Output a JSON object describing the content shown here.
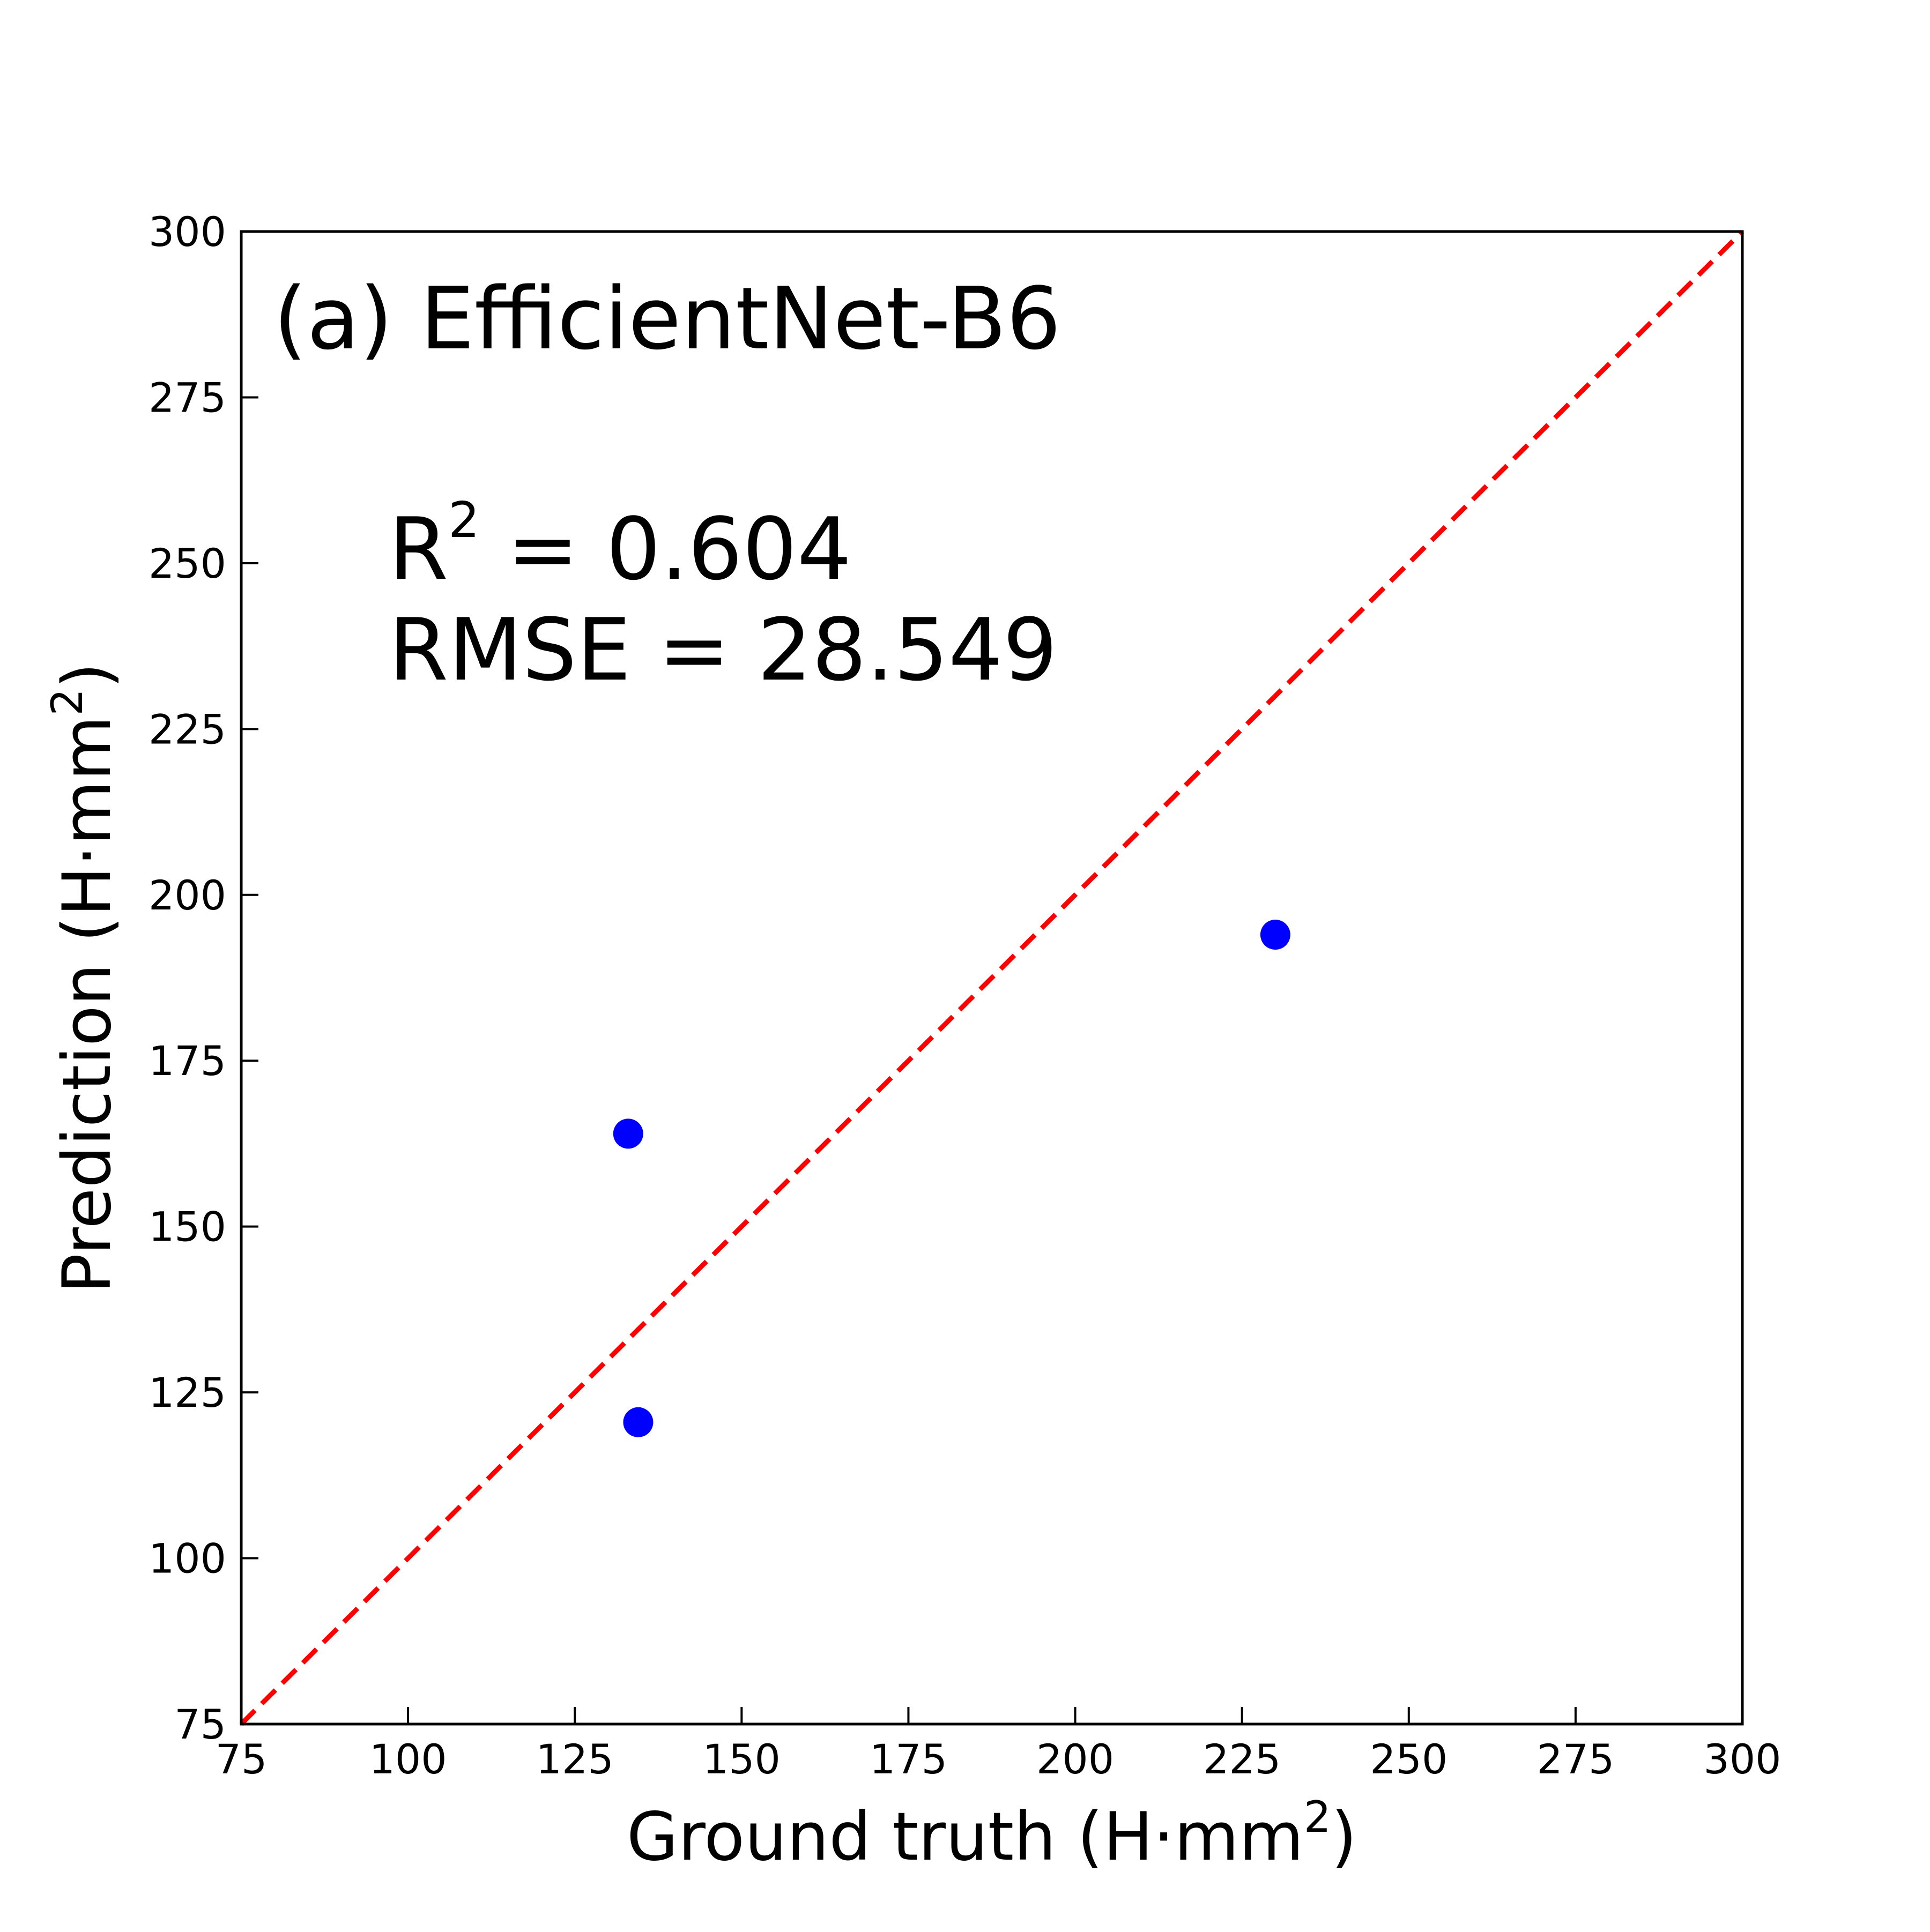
{
  "chart_data": {
    "type": "scatter",
    "title": "(a) EfficientNet-B6",
    "xlabel": "Ground truth (H·mm",
    "ylabel": "Prediction (H·mm",
    "label_unit_exponent": "2",
    "label_close": ")",
    "xlim": [
      75,
      300
    ],
    "ylim": [
      75,
      300
    ],
    "xticks": [
      75,
      100,
      125,
      150,
      175,
      200,
      225,
      250,
      275,
      300
    ],
    "yticks": [
      75,
      100,
      125,
      150,
      175,
      200,
      225,
      250,
      275,
      300
    ],
    "xtick_labels": [
      "75",
      "100",
      "125",
      "150",
      "175",
      "200",
      "225",
      "250",
      "275",
      "300"
    ],
    "ytick_labels": [
      "75",
      "100",
      "125",
      "150",
      "175",
      "200",
      "225",
      "250",
      "275",
      "300"
    ],
    "series": [
      {
        "marker_color": "#0000ff",
        "x": [
          133.0,
          134.5,
          230.0
        ],
        "y": [
          164.0,
          120.5,
          194.0
        ]
      }
    ],
    "reference_line": {
      "kind": "identity",
      "color": "#ff0000",
      "style": "dashed",
      "from": [
        75,
        75
      ],
      "to": [
        300,
        300
      ]
    },
    "annotations": {
      "r2_symbol": "R",
      "r2_exponent": "2",
      "r2_text": " =  0.604",
      "rmse_text": "RMSE = 28.549"
    },
    "grid": false,
    "legend": "none",
    "tick_direction": "in"
  }
}
